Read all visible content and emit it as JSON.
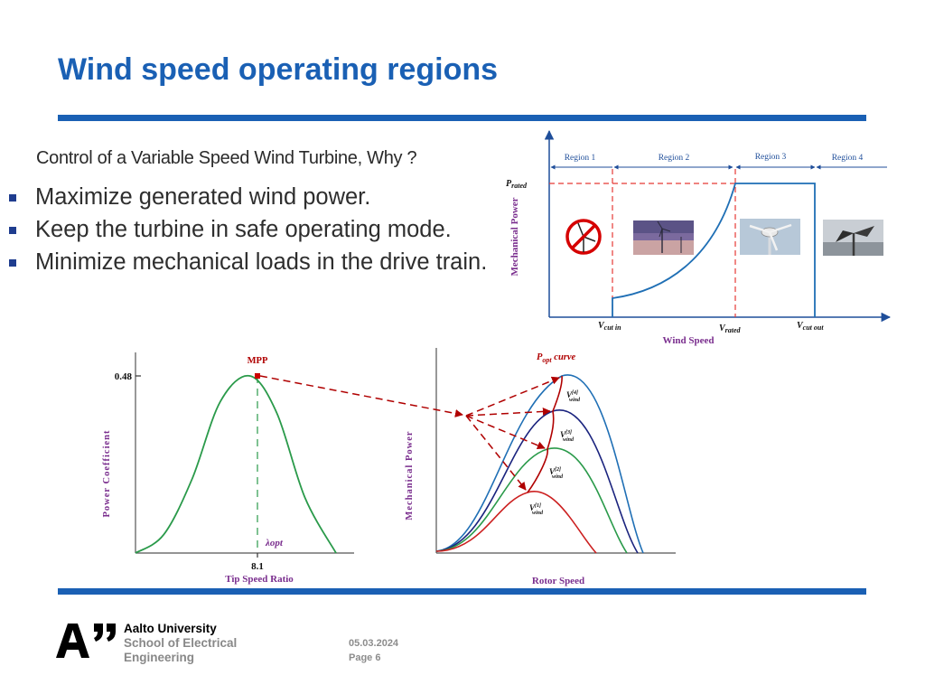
{
  "slide": {
    "title": "Wind speed operating regions",
    "subtitle": "Control of a Variable Speed Wind Turbine, Why ?",
    "bullets": [
      "Maximize generated wind power.",
      "Keep the turbine in safe operating mode.",
      "Minimize mechanical loads in the drive train."
    ]
  },
  "colors": {
    "accent": "#1a60b4",
    "curve": "#1f6fb5",
    "dashed": "#e53935",
    "green_curve": "#2a9a4a",
    "red_curve": "#cc2020",
    "mpp": "#b00000",
    "label_purple": "#7a2e8e"
  },
  "region_diagram": {
    "regions": [
      "Region 1",
      "Region 2",
      "Region 3",
      "Region 4"
    ],
    "y_label": "Mechanical Power",
    "x_label": "Wind Speed",
    "p_rated": "P",
    "p_rated_sub": "rated",
    "ticks": [
      {
        "main": "V",
        "sub": "cut in"
      },
      {
        "main": "V",
        "sub": "rated"
      },
      {
        "main": "V",
        "sub": "cut out"
      }
    ],
    "icons": [
      "no-turbine-icon",
      "turbine-sunset-photo",
      "turbine-closeup-photo",
      "damaged-turbine-photo"
    ]
  },
  "chart_data": [
    {
      "type": "line",
      "ylabel": "Power Coefficient",
      "xlabel": "Tip Speed Ratio",
      "annotations": [
        "MPP",
        "λopt"
      ],
      "y_tick": "0.48",
      "x_tick": "8.1",
      "series": [
        {
          "x": [
            0,
            2,
            4,
            6,
            8.1,
            10,
            12,
            14.2
          ],
          "y": [
            0.0,
            0.05,
            0.2,
            0.41,
            0.48,
            0.38,
            0.15,
            0.0
          ]
        }
      ]
    },
    {
      "type": "line",
      "ylabel": "Mechanical Power",
      "xlabel": "Rotor Speed",
      "annotations": [
        "Popt curve"
      ],
      "p_opt_main": "P",
      "p_opt_sub": "opt",
      "p_opt_rest": " curve",
      "wind_labels": [
        {
          "main": "V",
          "sup": "[4]",
          "sub": "wind"
        },
        {
          "main": "V",
          "sup": "[3]",
          "sub": "wind"
        },
        {
          "main": "V",
          "sup": "[2]",
          "sub": "wind"
        },
        {
          "main": "V",
          "sup": "[1]",
          "sub": "wind"
        }
      ],
      "series": [
        {
          "name": "",
          "color": "#1f6fb5",
          "x": [
            0,
            0.4,
            0.6,
            0.8,
            1.0
          ],
          "y": [
            0,
            0.4,
            1.0,
            0.6,
            0
          ]
        },
        {
          "name": "",
          "color": "#1a237e",
          "x": [
            0,
            0.4,
            0.6,
            0.8,
            0.98
          ],
          "y": [
            0,
            0.3,
            0.8,
            0.5,
            0
          ]
        },
        {
          "name": "",
          "color": "#2a9a4a",
          "x": [
            0,
            0.35,
            0.53,
            0.7,
            0.93
          ],
          "y": [
            0,
            0.2,
            0.6,
            0.4,
            0
          ]
        },
        {
          "name": "",
          "color": "#cc2020",
          "x": [
            0,
            0.3,
            0.45,
            0.6,
            0.76
          ],
          "y": [
            0,
            0.1,
            0.35,
            0.2,
            0
          ]
        }
      ]
    }
  ],
  "footer": {
    "university_line1": "Aalto University",
    "university_line2": "School of Electrical",
    "university_line3": "Engineering",
    "date": "05.03.2024",
    "page": "Page 6"
  }
}
